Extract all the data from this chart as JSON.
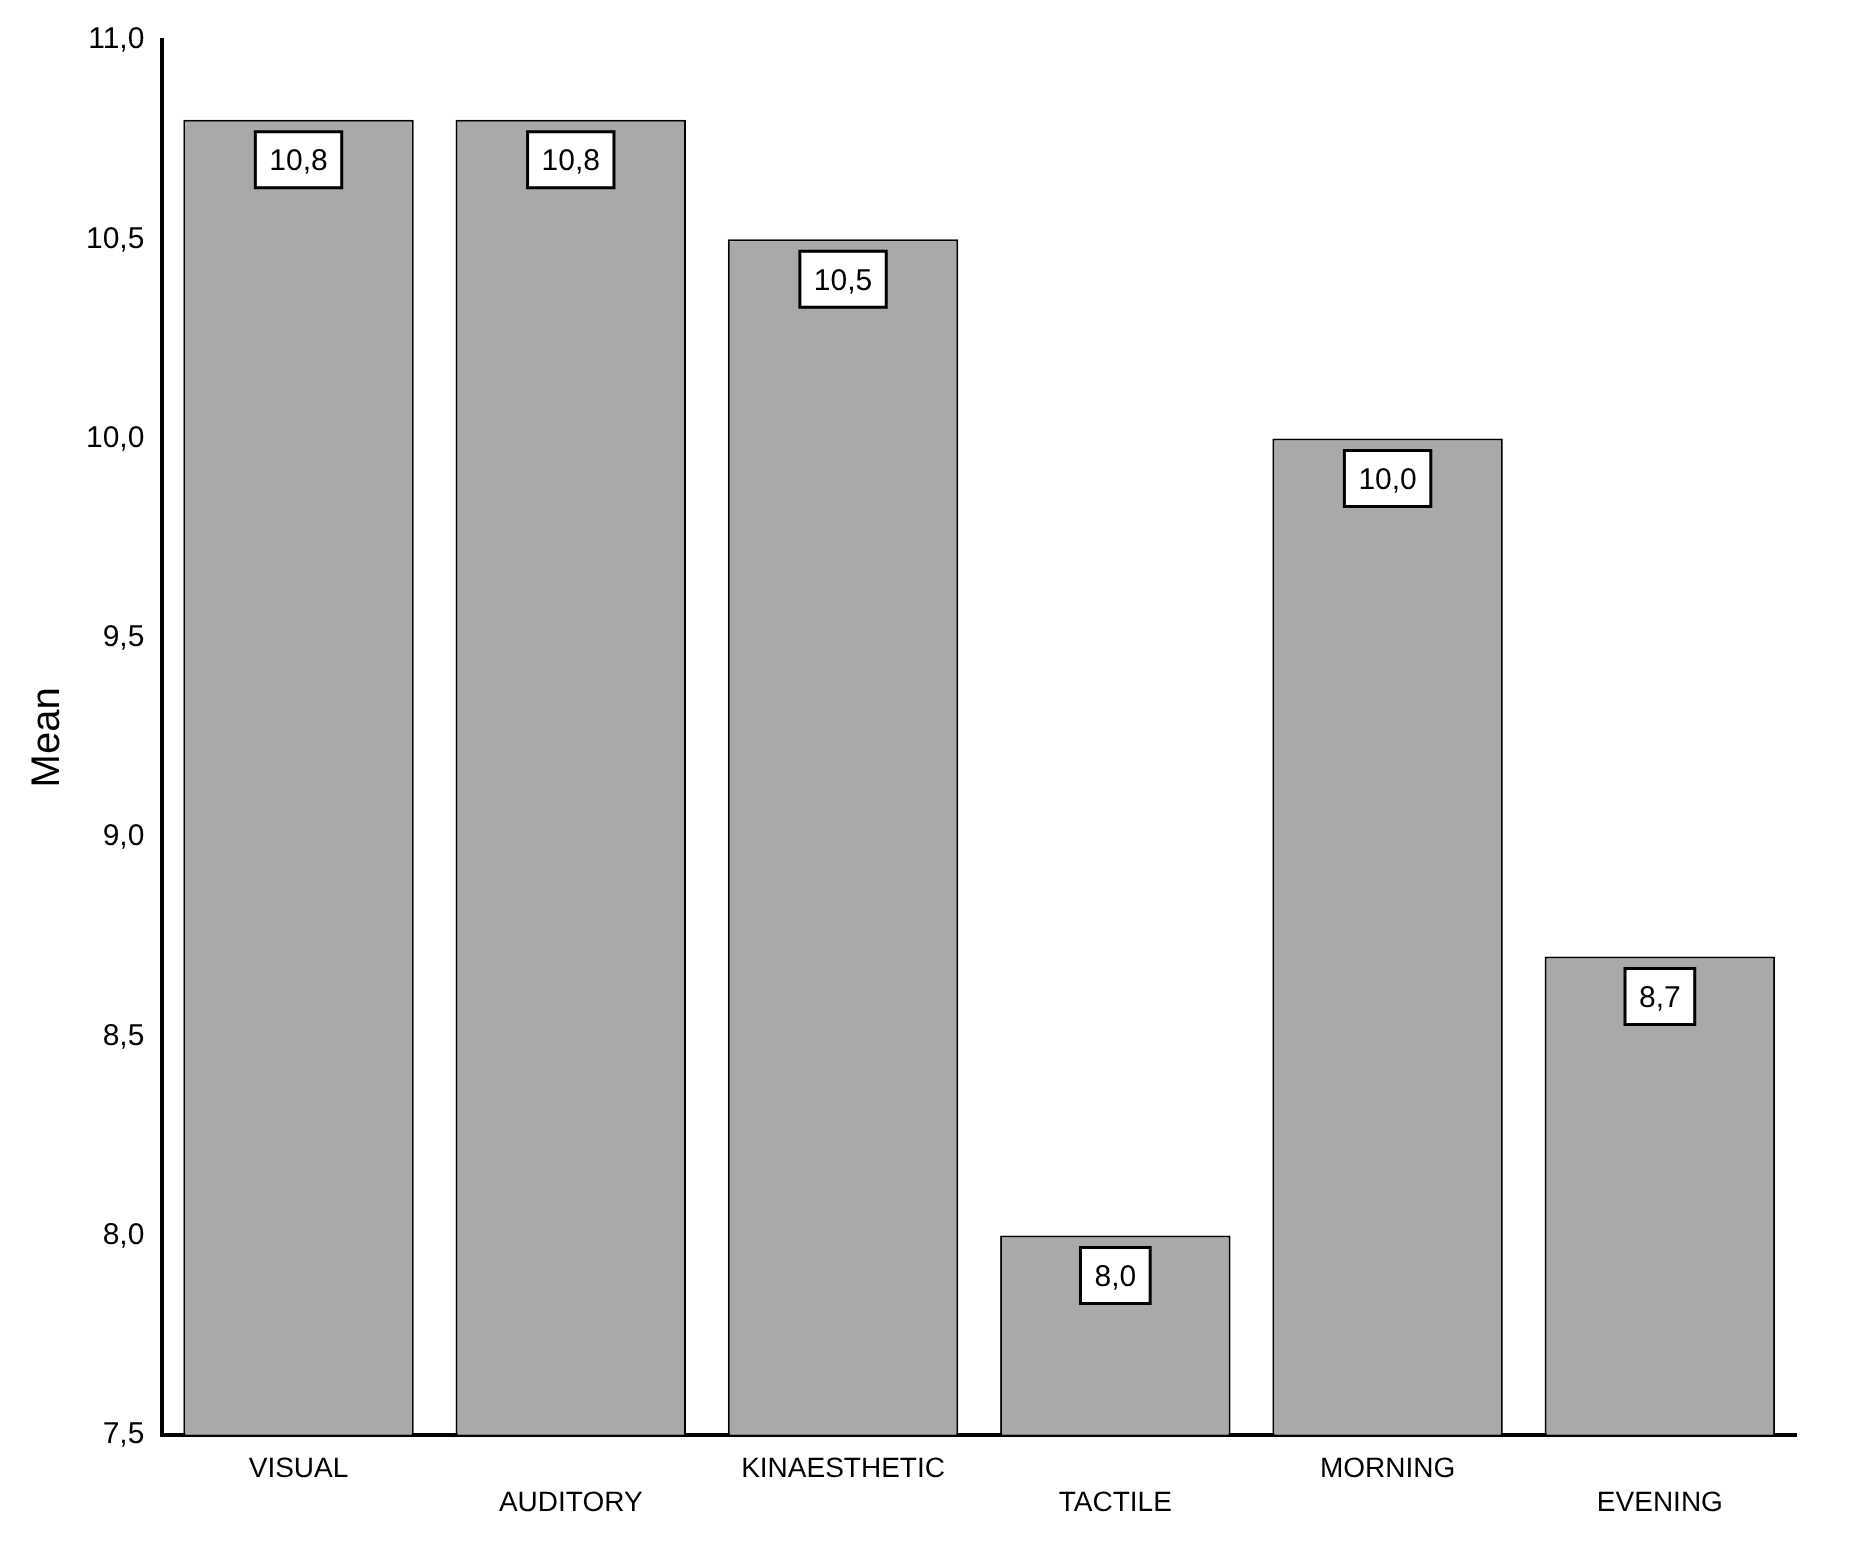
{
  "chart_data": {
    "type": "bar",
    "ylabel": "Mean",
    "categories": [
      "VISUAL",
      "AUDITORY",
      "KINAESTHETIC",
      "TACTILE",
      "MORNING",
      "EVENING"
    ],
    "values": [
      10.8,
      10.8,
      10.5,
      8.0,
      10.0,
      8.7
    ],
    "value_labels": [
      "10,8",
      "10,8",
      "10,5",
      "8,0",
      "10,0",
      "8,7"
    ],
    "color": "#a9a9a9",
    "ylim": [
      7.5,
      11.0
    ],
    "yticks": [
      {
        "value": 7.5,
        "label": "7,5"
      },
      {
        "value": 8.0,
        "label": "8,0"
      },
      {
        "value": 8.5,
        "label": "8,5"
      },
      {
        "value": 9.0,
        "label": "9,0"
      },
      {
        "value": 9.5,
        "label": "9,5"
      },
      {
        "value": 10.0,
        "label": "10,0"
      },
      {
        "value": 10.5,
        "label": "10,5"
      },
      {
        "value": 11.0,
        "label": "11,0"
      }
    ],
    "grid": false,
    "legend": false
  }
}
